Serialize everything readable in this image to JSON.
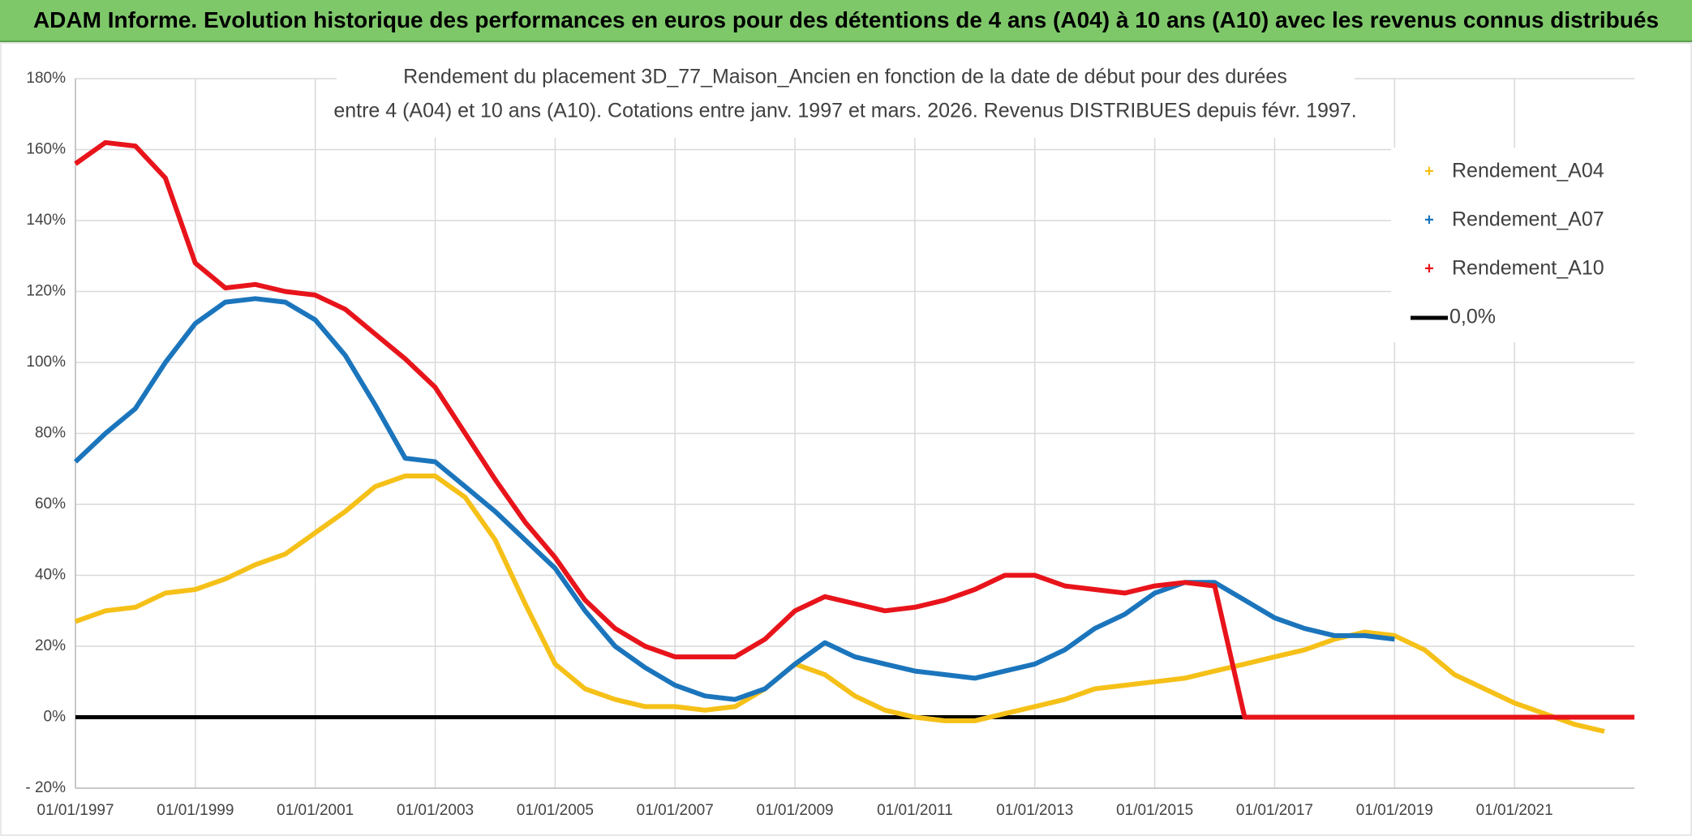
{
  "header": {
    "title": "ADAM Informe. Evolution historique des performances en euros pour des détentions de 4 ans (A04) à 10 ans (A10) avec les revenus connus distribués"
  },
  "chart_data": {
    "type": "line",
    "title": "Rendement du placement 3D_77_Maison_Ancien en fonction de la date de début pour des durées",
    "subtitle": "entre 4 (A04) et 10 ans (A10). Cotations entre janv. 1997 et mars. 2026. Revenus DISTRIBUES depuis févr. 1997.",
    "x": [
      "01/01/1997",
      "01/07/1997",
      "01/01/1998",
      "01/07/1998",
      "01/01/1999",
      "01/07/1999",
      "01/01/2000",
      "01/07/2000",
      "01/01/2001",
      "01/07/2001",
      "01/01/2002",
      "01/07/2002",
      "01/01/2003",
      "01/07/2003",
      "01/01/2004",
      "01/07/2004",
      "01/01/2005",
      "01/07/2005",
      "01/01/2006",
      "01/07/2006",
      "01/01/2007",
      "01/07/2007",
      "01/01/2008",
      "01/07/2008",
      "01/01/2009",
      "01/07/2009",
      "01/01/2010",
      "01/07/2010",
      "01/01/2011",
      "01/07/2011",
      "01/01/2012",
      "01/07/2012",
      "01/01/2013",
      "01/07/2013",
      "01/01/2014",
      "01/07/2014",
      "01/01/2015",
      "01/07/2015",
      "01/01/2016",
      "01/07/2016",
      "01/01/2017",
      "01/07/2017",
      "01/01/2018",
      "01/07/2018",
      "01/01/2019",
      "01/07/2019",
      "01/01/2020",
      "01/07/2020",
      "01/01/2021",
      "01/07/2021",
      "01/01/2022",
      "01/07/2022",
      "01/01/2023"
    ],
    "series": [
      {
        "name": "Rendement_A04",
        "color": "#f5c018",
        "values": [
          27,
          30,
          31,
          35,
          36,
          39,
          43,
          46,
          52,
          58,
          65,
          68,
          68,
          62,
          50,
          32,
          15,
          8,
          5,
          3,
          3,
          2,
          3,
          8,
          15,
          12,
          6,
          2,
          0,
          -1,
          -1,
          1,
          3,
          5,
          8,
          9,
          10,
          11,
          13,
          15,
          17,
          19,
          22,
          24,
          23,
          19,
          12,
          8,
          4,
          1,
          -2,
          -4,
          null
        ]
      },
      {
        "name": "Rendement_A07",
        "color": "#1b75bc",
        "values": [
          72,
          80,
          87,
          100,
          111,
          117,
          118,
          117,
          112,
          102,
          88,
          73,
          72,
          65,
          58,
          50,
          42,
          30,
          20,
          14,
          9,
          6,
          5,
          8,
          15,
          21,
          17,
          15,
          13,
          12,
          11,
          13,
          15,
          19,
          25,
          29,
          35,
          38,
          38,
          33,
          28,
          25,
          23,
          23,
          22,
          null,
          null,
          null,
          null,
          null,
          null,
          null,
          null
        ]
      },
      {
        "name": "Rendement_A10",
        "color": "#e8141b",
        "values": [
          156,
          162,
          161,
          152,
          128,
          121,
          122,
          120,
          119,
          115,
          108,
          101,
          93,
          80,
          67,
          55,
          45,
          33,
          25,
          20,
          17,
          17,
          17,
          22,
          30,
          34,
          32,
          30,
          31,
          33,
          36,
          40,
          40,
          37,
          36,
          35,
          37,
          38,
          37,
          0,
          0,
          0,
          0,
          0,
          0,
          0,
          0,
          0,
          0,
          0,
          0,
          0,
          0
        ]
      },
      {
        "name": "0,0%",
        "color": "#000000",
        "values": [
          0,
          0,
          0,
          0,
          0,
          0,
          0,
          0,
          0,
          0,
          0,
          0,
          0,
          0,
          0,
          0,
          0,
          0,
          0,
          0,
          0,
          0,
          0,
          0,
          0,
          0,
          0,
          0,
          0,
          0,
          0,
          0,
          0,
          0,
          0,
          0,
          0,
          0,
          0,
          0,
          0,
          0,
          0,
          0,
          0,
          0,
          0,
          0,
          0,
          0,
          0,
          0,
          0
        ]
      }
    ],
    "xlim": [
      "01/01/1997",
      "01/01/2023"
    ],
    "xticks": [
      "01/01/1997",
      "01/01/1999",
      "01/01/2001",
      "01/01/2003",
      "01/01/2005",
      "01/01/2007",
      "01/01/2009",
      "01/01/2011",
      "01/01/2013",
      "01/01/2015",
      "01/01/2017",
      "01/01/2019",
      "01/01/2021"
    ],
    "ylim": [
      -20,
      180
    ],
    "yticks": [
      {
        "value": -20,
        "label": "- 20%"
      },
      {
        "value": 0,
        "label": "0%"
      },
      {
        "value": 20,
        "label": "20%"
      },
      {
        "value": 40,
        "label": "40%"
      },
      {
        "value": 60,
        "label": "60%"
      },
      {
        "value": 80,
        "label": "80%"
      },
      {
        "value": 100,
        "label": "100%"
      },
      {
        "value": 120,
        "label": "120%"
      },
      {
        "value": 140,
        "label": "140%"
      },
      {
        "value": 160,
        "label": "160%"
      },
      {
        "value": 180,
        "label": "180%"
      }
    ],
    "grid": true,
    "legend": "top-right"
  }
}
